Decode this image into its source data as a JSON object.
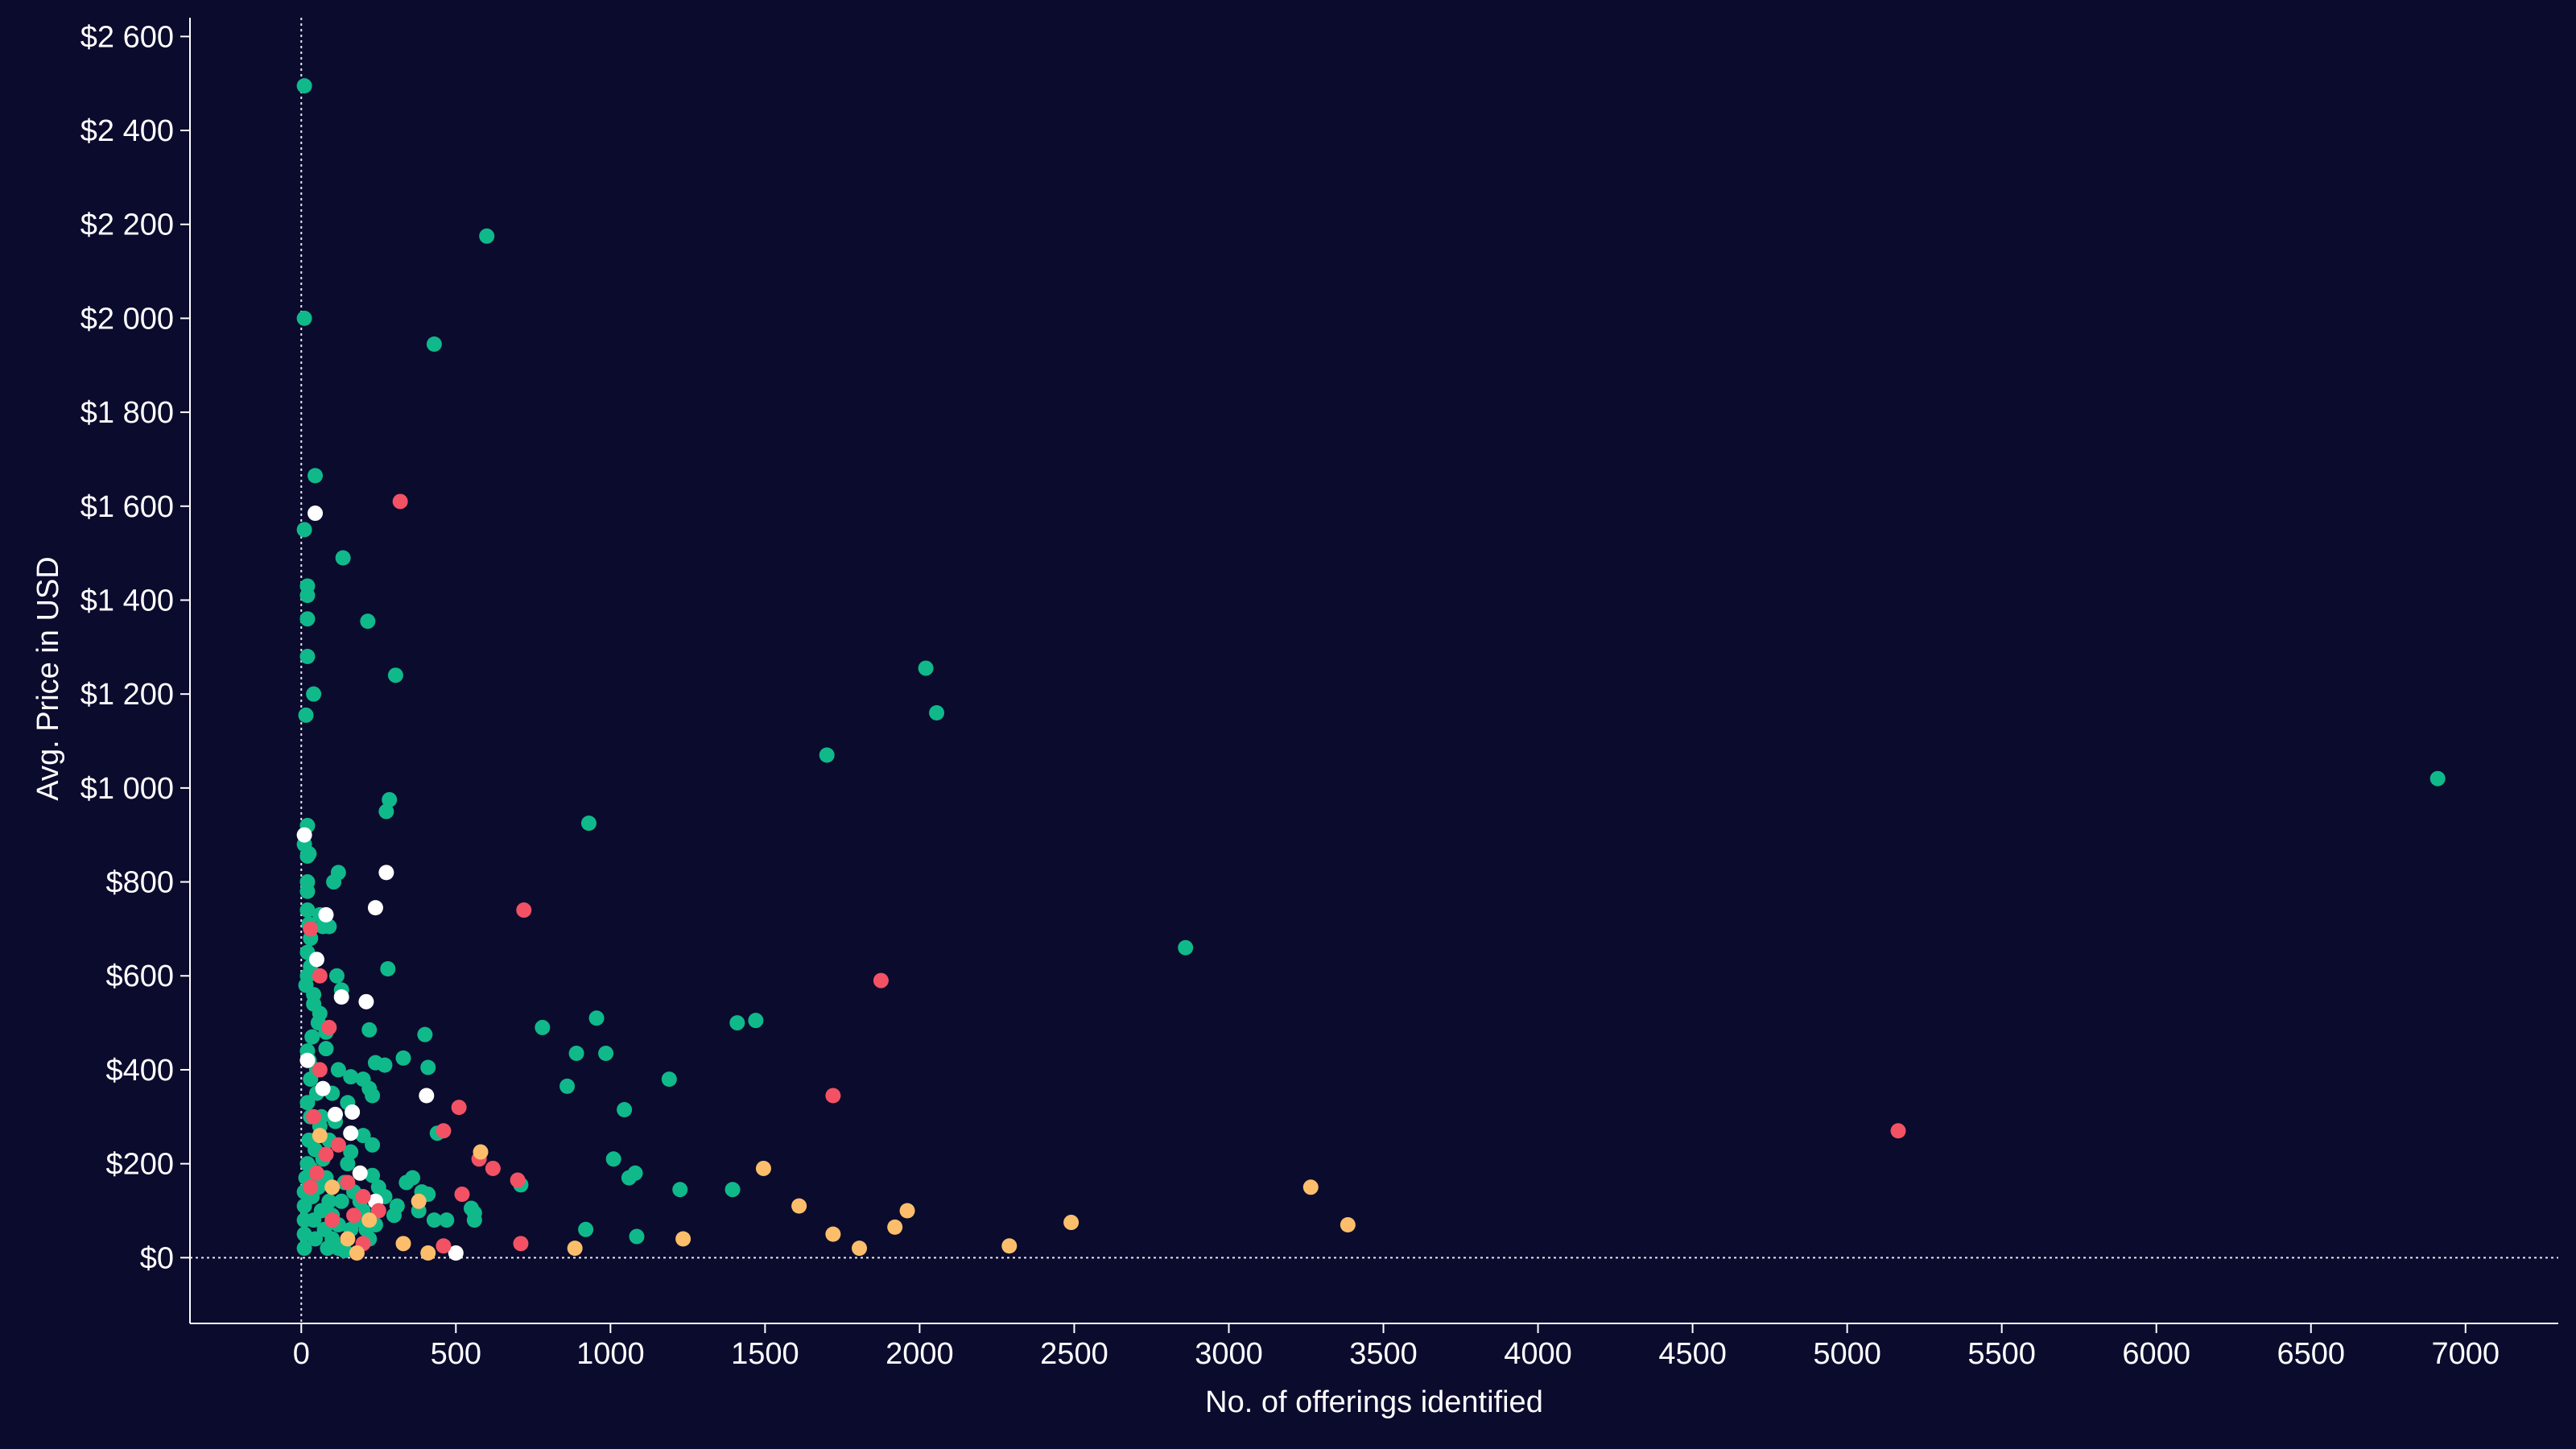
{
  "chart_data": {
    "type": "scatter",
    "xlabel": "No. of offerings identified",
    "ylabel": "Avg. Price in USD",
    "xlim": [
      -360,
      7300
    ],
    "ylim": [
      -140,
      2640
    ],
    "x_ticks": [
      0,
      500,
      1000,
      1500,
      2000,
      2500,
      3000,
      3500,
      4000,
      4500,
      5000,
      5500,
      6000,
      6500,
      7000
    ],
    "x_tick_labels": [
      "0",
      "500",
      "1000",
      "1500",
      "2000",
      "2500",
      "3000",
      "3500",
      "4000",
      "4500",
      "5000",
      "5500",
      "6000",
      "6500",
      "7000"
    ],
    "y_ticks": [
      0,
      200,
      400,
      600,
      800,
      1000,
      1200,
      1400,
      1600,
      1800,
      2000,
      2200,
      2400,
      2600
    ],
    "y_tick_labels": [
      "$0",
      "$200",
      "$400",
      "$600",
      "$800",
      "$1 000",
      "$1 200",
      "$1 400",
      "$1 600",
      "$1 800",
      "$2 000",
      "$2 200",
      "$2 400",
      "$2 600"
    ],
    "grid": false,
    "legend": "none",
    "reference_lines": [
      {
        "axis": "x",
        "value": 0,
        "style": "dotted"
      },
      {
        "axis": "y",
        "value": 0,
        "style": "dotted"
      }
    ],
    "series": [
      {
        "color": "#10b98a",
        "points": [
          [
            10,
            2495
          ],
          [
            600,
            2175
          ],
          [
            10,
            2000
          ],
          [
            430,
            1945
          ],
          [
            45,
            1665
          ],
          [
            10,
            1550
          ],
          [
            135,
            1490
          ],
          [
            20,
            1430
          ],
          [
            20,
            1410
          ],
          [
            20,
            1360
          ],
          [
            215,
            1355
          ],
          [
            20,
            1280
          ],
          [
            305,
            1240
          ],
          [
            40,
            1200
          ],
          [
            15,
            1155
          ],
          [
            2020,
            1255
          ],
          [
            2055,
            1160
          ],
          [
            1700,
            1070
          ],
          [
            6910,
            1020
          ],
          [
            930,
            925
          ],
          [
            20,
            920
          ],
          [
            285,
            975
          ],
          [
            275,
            950
          ],
          [
            10,
            880
          ],
          [
            25,
            860
          ],
          [
            20,
            855
          ],
          [
            120,
            820
          ],
          [
            105,
            800
          ],
          [
            20,
            800
          ],
          [
            20,
            780
          ],
          [
            20,
            740
          ],
          [
            60,
            730
          ],
          [
            70,
            705
          ],
          [
            90,
            705
          ],
          [
            30,
            680
          ],
          [
            20,
            650
          ],
          [
            280,
            615
          ],
          [
            2860,
            660
          ],
          [
            20,
            600
          ],
          [
            115,
            600
          ],
          [
            130,
            570
          ],
          [
            955,
            510
          ],
          [
            1470,
            505
          ],
          [
            1410,
            500
          ],
          [
            780,
            490
          ],
          [
            220,
            485
          ],
          [
            400,
            475
          ],
          [
            890,
            435
          ],
          [
            985,
            435
          ],
          [
            20,
            440
          ],
          [
            80,
            445
          ],
          [
            330,
            425
          ],
          [
            240,
            415
          ],
          [
            270,
            410
          ],
          [
            410,
            405
          ],
          [
            1190,
            380
          ],
          [
            860,
            365
          ],
          [
            120,
            400
          ],
          [
            160,
            385
          ],
          [
            200,
            380
          ],
          [
            220,
            360
          ],
          [
            230,
            345
          ],
          [
            150,
            330
          ],
          [
            1045,
            315
          ],
          [
            440,
            265
          ],
          [
            230,
            240
          ],
          [
            160,
            225
          ],
          [
            1010,
            210
          ],
          [
            1080,
            180
          ],
          [
            1060,
            170
          ],
          [
            1225,
            145
          ],
          [
            1395,
            145
          ],
          [
            710,
            155
          ],
          [
            360,
            170
          ],
          [
            340,
            160
          ],
          [
            390,
            140
          ],
          [
            410,
            135
          ],
          [
            310,
            110
          ],
          [
            300,
            90
          ],
          [
            380,
            100
          ],
          [
            430,
            80
          ],
          [
            550,
            105
          ],
          [
            560,
            95
          ],
          [
            560,
            80
          ],
          [
            470,
            80
          ],
          [
            920,
            60
          ],
          [
            1085,
            45
          ],
          [
            200,
            260
          ],
          [
            110,
            290
          ],
          [
            90,
            250
          ],
          [
            150,
            200
          ],
          [
            230,
            175
          ],
          [
            250,
            150
          ],
          [
            270,
            130
          ],
          [
            200,
            100
          ],
          [
            180,
            80
          ],
          [
            240,
            70
          ],
          [
            160,
            60
          ],
          [
            100,
            40
          ],
          [
            120,
            20
          ],
          [
            140,
            15
          ],
          [
            60,
            520
          ],
          [
            40,
            560
          ],
          [
            80,
            480
          ],
          [
            50,
            350
          ],
          [
            30,
            300
          ],
          [
            25,
            250
          ],
          [
            20,
            200
          ],
          [
            15,
            170
          ],
          [
            10,
            140
          ],
          [
            10,
            110
          ],
          [
            10,
            80
          ],
          [
            10,
            50
          ],
          [
            10,
            20
          ],
          [
            30,
            190
          ],
          [
            35,
            130
          ],
          [
            40,
            80
          ],
          [
            45,
            40
          ],
          [
            55,
            150
          ],
          [
            65,
            100
          ],
          [
            75,
            60
          ],
          [
            85,
            20
          ],
          [
            30,
            620
          ],
          [
            35,
            470
          ],
          [
            50,
            400
          ],
          [
            60,
            280
          ],
          [
            70,
            210
          ],
          [
            80,
            170
          ],
          [
            90,
            120
          ],
          [
            100,
            90
          ],
          [
            120,
            70
          ],
          [
            130,
            120
          ],
          [
            140,
            160
          ],
          [
            170,
            140
          ],
          [
            190,
            120
          ],
          [
            210,
            60
          ],
          [
            220,
            40
          ],
          [
            25,
            710
          ],
          [
            40,
            540
          ],
          [
            55,
            500
          ],
          [
            15,
            580
          ],
          [
            25,
            420
          ],
          [
            100,
            350
          ],
          [
            45,
            230
          ],
          [
            65,
            300
          ],
          [
            20,
            330
          ],
          [
            30,
            380
          ]
        ]
      },
      {
        "color": "#ffffff",
        "points": [
          [
            45,
            1585
          ],
          [
            275,
            820
          ],
          [
            10,
            900
          ],
          [
            240,
            745
          ],
          [
            80,
            730
          ],
          [
            50,
            635
          ],
          [
            210,
            545
          ],
          [
            130,
            555
          ],
          [
            405,
            345
          ],
          [
            70,
            360
          ],
          [
            110,
            305
          ],
          [
            165,
            310
          ],
          [
            160,
            265
          ],
          [
            500,
            10
          ],
          [
            20,
            420
          ],
          [
            240,
            120
          ],
          [
            190,
            180
          ]
        ]
      },
      {
        "color": "#f25264",
        "points": [
          [
            320,
            1610
          ],
          [
            720,
            740
          ],
          [
            1875,
            590
          ],
          [
            1720,
            345
          ],
          [
            5165,
            270
          ],
          [
            510,
            320
          ],
          [
            460,
            270
          ],
          [
            575,
            210
          ],
          [
            620,
            190
          ],
          [
            700,
            165
          ],
          [
            520,
            135
          ],
          [
            710,
            30
          ],
          [
            460,
            25
          ],
          [
            30,
            700
          ],
          [
            60,
            600
          ],
          [
            90,
            490
          ],
          [
            60,
            400
          ],
          [
            40,
            300
          ],
          [
            120,
            240
          ],
          [
            80,
            220
          ],
          [
            150,
            160
          ],
          [
            200,
            130
          ],
          [
            250,
            100
          ],
          [
            200,
            30
          ],
          [
            100,
            80
          ],
          [
            30,
            150
          ],
          [
            50,
            180
          ],
          [
            170,
            90
          ]
        ]
      },
      {
        "color": "#fcbe6a",
        "points": [
          [
            580,
            225
          ],
          [
            1495,
            190
          ],
          [
            3265,
            150
          ],
          [
            1610,
            110
          ],
          [
            1960,
            100
          ],
          [
            3385,
            70
          ],
          [
            2490,
            75
          ],
          [
            1920,
            65
          ],
          [
            1720,
            50
          ],
          [
            1235,
            40
          ],
          [
            1805,
            20
          ],
          [
            2290,
            25
          ],
          [
            885,
            20
          ],
          [
            330,
            30
          ],
          [
            410,
            10
          ],
          [
            180,
            10
          ],
          [
            150,
            40
          ],
          [
            220,
            80
          ],
          [
            380,
            120
          ],
          [
            100,
            150
          ],
          [
            60,
            260
          ]
        ]
      }
    ]
  }
}
